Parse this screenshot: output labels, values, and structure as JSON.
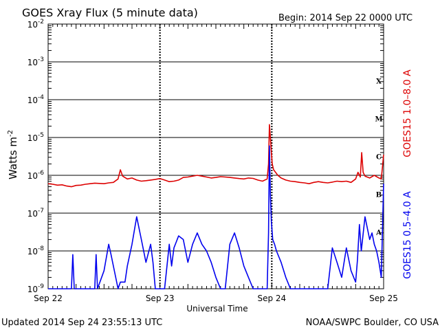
{
  "header": {
    "title": "GOES Xray Flux (5 minute data)",
    "begin": "Begin:  2014 Sep 22 0000 UTC"
  },
  "footer": {
    "updated": "Updated 2014 Sep 24 23:55:13 UTC",
    "credit": "NOAA/SWPC Boulder, CO USA"
  },
  "colors": {
    "long_channel": "#dd0000",
    "short_channel": "#0000ee",
    "grid": "#000000"
  },
  "chart_data": {
    "type": "line",
    "title": "GOES Xray Flux (5 minute data)",
    "xlabel": "Universal Time",
    "ylabel": "Watts m",
    "ylabel_sup": "-2",
    "yscale": "log",
    "ylim": [
      1e-09,
      0.01
    ],
    "xlim": [
      0,
      72
    ],
    "x_unit": "hours since 2014 Sep 22 0000 UTC",
    "yticks": [
      {
        "base": "10",
        "exp": "-2",
        "value": 0.01
      },
      {
        "base": "10",
        "exp": "-3",
        "value": 0.001
      },
      {
        "base": "10",
        "exp": "-4",
        "value": 0.0001
      },
      {
        "base": "10",
        "exp": "-5",
        "value": 1e-05
      },
      {
        "base": "10",
        "exp": "-6",
        "value": 1e-06
      },
      {
        "base": "10",
        "exp": "-7",
        "value": 1e-07
      },
      {
        "base": "10",
        "exp": "-8",
        "value": 1e-08
      },
      {
        "base": "10",
        "exp": "-9",
        "value": 1e-09
      }
    ],
    "xticks": [
      {
        "label": "Sep 22",
        "x": 0
      },
      {
        "label": "Sep 23",
        "x": 24
      },
      {
        "label": "Sep 24",
        "x": 48
      },
      {
        "label": "Sep 25",
        "x": 72
      }
    ],
    "flare_classes": [
      {
        "label": "X",
        "value": 0.0001
      },
      {
        "label": "M",
        "value": 1e-05
      },
      {
        "label": "C",
        "value": 1e-06
      },
      {
        "label": "B",
        "value": 1e-07
      },
      {
        "label": "A",
        "value": 1e-08
      }
    ],
    "grid": true,
    "series": [
      {
        "name": "GOES15 1.0–8.0 A",
        "color": "#dd0000",
        "x": [
          0,
          1,
          2,
          3,
          4,
          5,
          6,
          7,
          8,
          9,
          10,
          11,
          12,
          13,
          14,
          15,
          15.5,
          16,
          17,
          18,
          19,
          20,
          21,
          22,
          23,
          24,
          25,
          26,
          27,
          28,
          29,
          30,
          31,
          32,
          33,
          34,
          35,
          36,
          37,
          38,
          39,
          40,
          41,
          42,
          43,
          44,
          45,
          46,
          47,
          47.3,
          47.5,
          47.7,
          47.9,
          48.1,
          48.4,
          48.8,
          49.3,
          50,
          51,
          52,
          53,
          54,
          55,
          56,
          57,
          58,
          59,
          60,
          61,
          62,
          63,
          64,
          65,
          66,
          66.5,
          67,
          67.3,
          67.6,
          68,
          69,
          70,
          71,
          71.5,
          72
        ],
        "values": [
          6e-07,
          5.8e-07,
          5.5e-07,
          5.6e-07,
          5.2e-07,
          5e-07,
          5.4e-07,
          5.5e-07,
          5.8e-07,
          6e-07,
          6.2e-07,
          6.1e-07,
          6e-07,
          6.3e-07,
          6.5e-07,
          8e-07,
          1.4e-06,
          9.5e-07,
          8e-07,
          8.5e-07,
          7.5e-07,
          7e-07,
          7.2e-07,
          7.5e-07,
          7.8e-07,
          8.2e-07,
          7.5e-07,
          6.8e-07,
          7e-07,
          7.5e-07,
          8.8e-07,
          9e-07,
          9.5e-07,
          1e-06,
          9.5e-07,
          9e-07,
          8.5e-07,
          8.8e-07,
          9.2e-07,
          9e-07,
          8.8e-07,
          8.5e-07,
          8.2e-07,
          8e-07,
          8.5e-07,
          8.3e-07,
          7.5e-07,
          7e-07,
          8e-07,
          2e-06,
          2.2e-05,
          1e-05,
          4e-06,
          2e-06,
          1.4e-06,
          1.2e-06,
          1e-06,
          8.5e-07,
          7.5e-07,
          7e-07,
          6.8e-07,
          6.5e-07,
          6.3e-07,
          6e-07,
          6.5e-07,
          6.8e-07,
          6.5e-07,
          6.3e-07,
          6.6e-07,
          7e-07,
          6.8e-07,
          7e-07,
          6.5e-07,
          8e-07,
          1.2e-06,
          9e-07,
          4e-06,
          1.2e-06,
          9.5e-07,
          8.5e-07,
          1e-06,
          8.5e-07,
          8e-07,
          3.5e-06
        ]
      },
      {
        "name": "GOES15 0.5–4.0 A",
        "color": "#0000ee",
        "x": [
          0,
          2,
          4,
          5,
          5.3,
          5.6,
          7,
          9,
          10,
          10.3,
          10.6,
          12,
          13,
          13.5,
          14,
          14.5,
          15,
          15.5,
          16,
          16.5,
          17,
          18,
          19,
          20,
          21,
          22,
          22.5,
          23,
          24,
          25,
          26,
          26.5,
          27,
          28,
          29,
          30,
          31,
          32,
          33,
          34,
          35,
          36,
          37,
          38,
          39,
          40,
          41,
          42,
          43,
          44,
          45,
          46,
          47,
          47.3,
          47.5,
          47.7,
          47.9,
          48.2,
          48.6,
          49,
          50,
          51,
          52,
          53,
          54,
          55,
          56,
          57,
          58,
          59,
          60,
          61,
          62,
          63,
          64,
          65,
          66,
          66.4,
          66.8,
          67.2,
          68,
          69,
          69.5,
          70,
          70.5,
          71,
          71.5,
          72
        ],
        "values": [
          1e-09,
          1e-09,
          1e-09,
          1e-09,
          8e-09,
          1e-09,
          1e-09,
          1e-09,
          1e-09,
          8e-09,
          1e-09,
          3e-09,
          1.5e-08,
          8e-09,
          4e-09,
          2e-09,
          1e-09,
          1.5e-09,
          1.5e-09,
          1.5e-09,
          4e-09,
          1.5e-08,
          8e-08,
          2e-08,
          5e-09,
          1.5e-08,
          5e-09,
          1e-09,
          1e-09,
          1e-09,
          1.5e-08,
          4e-09,
          1.2e-08,
          2.5e-08,
          2e-08,
          5e-09,
          1.5e-08,
          3e-08,
          1.5e-08,
          1e-08,
          5e-09,
          2e-09,
          1e-09,
          1e-09,
          1.5e-08,
          3e-08,
          1.2e-08,
          4e-09,
          2e-09,
          1e-09,
          1e-09,
          1e-09,
          1e-09,
          3e-08,
          6e-06,
          3e-07,
          6e-08,
          2e-08,
          1.5e-08,
          1e-08,
          5e-09,
          2e-09,
          1e-09,
          1e-09,
          1e-09,
          1e-09,
          1e-09,
          1e-09,
          1e-09,
          1e-09,
          1e-09,
          1.2e-08,
          5e-09,
          2e-09,
          1.2e-08,
          3e-09,
          1.5e-09,
          6e-09,
          5e-08,
          1e-08,
          8e-08,
          2e-08,
          3e-08,
          1.5e-08,
          1e-08,
          5e-09,
          2e-09,
          6e-07
        ]
      }
    ]
  }
}
